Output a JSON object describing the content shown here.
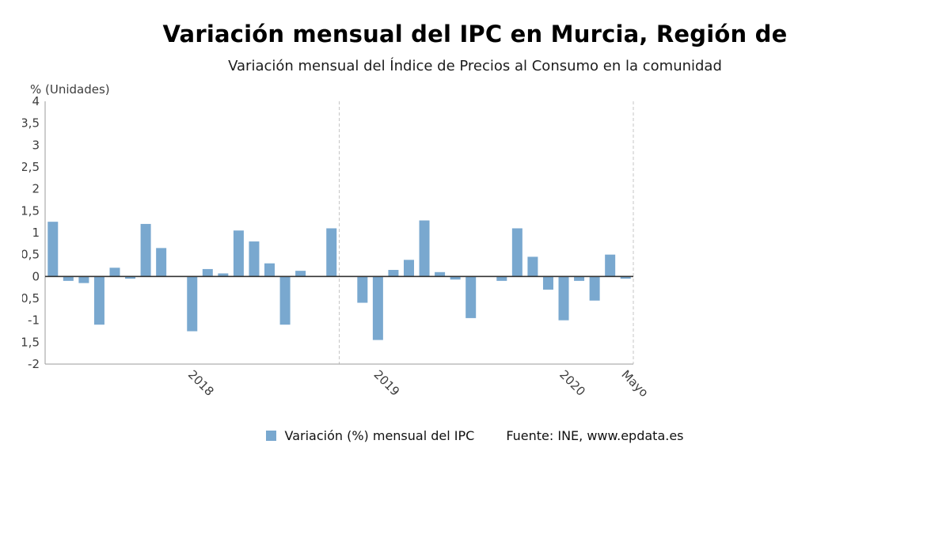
{
  "colors": {
    "bar": "#79A8CF",
    "axis": "#9b9b9b",
    "zero": "#333333",
    "grid": "#c6c6c6",
    "text": "#3d3d3d"
  },
  "chart_data": {
    "type": "bar",
    "title": "Variación mensual del IPC en Murcia, Región de",
    "subtitle": "Variación mensual del Índice de Precios al Consumo en la comunidad",
    "unit_label": "% (Unidades)",
    "legend": [
      "Variación (%) mensual del IPC"
    ],
    "source": "Fuente: INE, www.epdata.es",
    "ylim": [
      -2,
      4
    ],
    "y_tick_step": 0.5,
    "y_tick_labels": [
      "4",
      "3,5",
      "3",
      "2,5",
      "2",
      "1,5",
      "1",
      "0,5",
      "0",
      "-0,5",
      "-1",
      "-1,5",
      "-2"
    ],
    "x_tick_labels": [
      {
        "label": "2018",
        "slot": 9
      },
      {
        "label": "2019",
        "slot": 21
      },
      {
        "label": "2020",
        "slot": 33
      },
      {
        "label": "Mayo",
        "slot": 37
      }
    ],
    "series": [
      {
        "name": "Variación (%) mensual del IPC",
        "values": [
          1.25,
          -0.1,
          -0.15,
          -1.1,
          0.2,
          -0.05,
          1.2,
          0.65,
          0,
          -1.25,
          0.17,
          0.07,
          1.05,
          0.8,
          0.3,
          -1.1,
          0.13,
          0,
          1.1,
          0,
          -0.6,
          -1.45,
          0.15,
          0.38,
          1.28,
          0.1,
          -0.07,
          -0.95,
          0,
          -0.1,
          1.1,
          0.45,
          -0.3,
          -1.0,
          -0.1,
          -0.55,
          0.5,
          -0.05
        ]
      }
    ],
    "grid": {
      "vline_boundary_slots": [
        19
      ],
      "right_edge_dashed": true
    },
    "legend_position": "bottom"
  }
}
